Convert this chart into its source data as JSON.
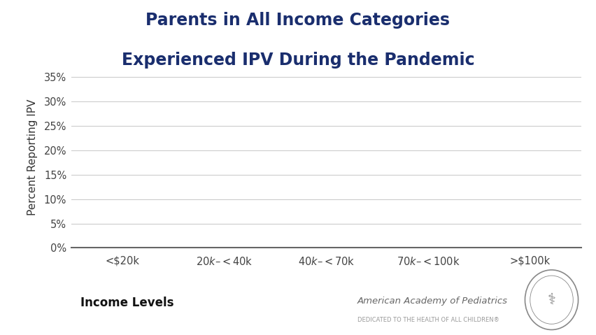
{
  "title_line1": "Parents in All Income Categories",
  "title_line2": "Experienced IPV During the Pandemic",
  "title_color": "#1a2e6e",
  "ylabel": "Percent Reporting IPV",
  "xlabel": "Income Levels",
  "x_labels": [
    "<$20k",
    "$20k–<$40k",
    "$40k–<$70k",
    "$70k–<$100k",
    ">$100k"
  ],
  "ytick_vals": [
    0,
    5,
    10,
    15,
    20,
    25,
    30,
    35
  ],
  "ytick_labels": [
    "0%",
    "5%",
    "10%",
    "15%",
    "20%",
    "25%",
    "30%",
    "35%"
  ],
  "ylim": [
    0,
    37
  ],
  "background_color": "#ffffff",
  "axis_bottom_color": "#666666",
  "grid_color": "#cccccc",
  "tick_label_color": "#444444",
  "ylabel_color": "#333333",
  "xlabel_color": "#111111",
  "aap_name": "American Academy of Pediatrics",
  "aap_tagline": "DEDICATED TO THE HEALTH OF ALL CHILDREN®",
  "title_fontsize": 17,
  "tick_fontsize": 10.5,
  "ylabel_fontsize": 11,
  "xlabel_fontsize": 12
}
